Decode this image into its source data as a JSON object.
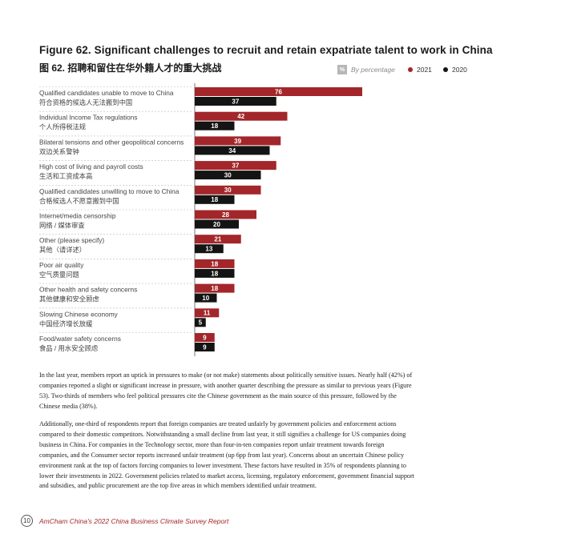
{
  "figure": {
    "title_en": "Figure 62. Significant challenges to recruit and retain expatriate talent to work in China",
    "title_zh": "图 62. 招聘和留住在华外籍人才的重大挑战",
    "by_percentage": "By percentage",
    "pct_icon": "%"
  },
  "colors": {
    "s2021": "#a3262a",
    "s2020": "#141414"
  },
  "chart_data": {
    "type": "bar",
    "orientation": "horizontal",
    "categories": [
      "Qualified candidates unable to move to China",
      "Individual Income Tax regulations",
      "Bilateral tensions and other geopolitical concerns",
      "High cost of living and payroll costs",
      "Qualified candidates unwilling to move to China",
      "Internet/media censorship",
      "Other (please specify)",
      "Poor air quality",
      "Other health and safety concerns",
      "Slowing Chinese economy",
      "Food/water safety concerns"
    ],
    "categories_zh": [
      "符合资格的候选人无法搬到中国",
      "个人所得税法规",
      "双边关系警钟",
      "生活和工资成本高",
      "合格候选人不愿意搬到中国",
      "网络 / 媒体审查",
      "其他（请详述）",
      "空气质量问题",
      "其他健康和安全顾虑",
      "中国经济增长放缓",
      "食品 / 用水安全顾虑"
    ],
    "series": [
      {
        "name": "2021",
        "values": [
          76,
          42,
          39,
          37,
          30,
          28,
          21,
          18,
          18,
          11,
          9
        ]
      },
      {
        "name": "2020",
        "values": [
          37,
          18,
          34,
          30,
          18,
          20,
          13,
          18,
          10,
          5,
          9
        ]
      }
    ],
    "legend_position": "top-right",
    "xlim": [
      0,
      100
    ],
    "grid": false
  },
  "body": {
    "paragraph1": "In the last year, members report an uptick in pressures to make (or not make) statements about politically sensitive issues. Nearly half (42%) of companies reported a slight or significant increase in pressure, with another quarter describing the pressure as similar to previous years (Figure 53). Two-thirds of members who feel political pressures cite the Chinese government as the main source of this pressure, followed by the Chinese media (38%).",
    "paragraph2": "Additionally, one-third of respondents report that foreign companies are treated unfairly by government policies and enforcement actions compared to their domestic competitors. Notwithstanding a small decline from last year, it still signifies a challenge for US companies doing business in China. For companies in the Technology sector, more than four-in-ten companies report unfair treatment towards foreign companies, and the Consumer sector reports increased unfair treatment (up 6pp from last year). Concerns about an uncertain Chinese policy environment rank at the top of factors forcing companies to lower investment. These factors have resulted in 35% of respondents planning to lower their investments in 2022. Government policies related to market access, licensing, regulatory enforcement, government financial support and subsidies, and public procurement are the top five areas in which members identified unfair treatment."
  },
  "footer": {
    "page_number": "10",
    "report_title": "AmCham China's 2022 China Business Climate Survey Report"
  }
}
